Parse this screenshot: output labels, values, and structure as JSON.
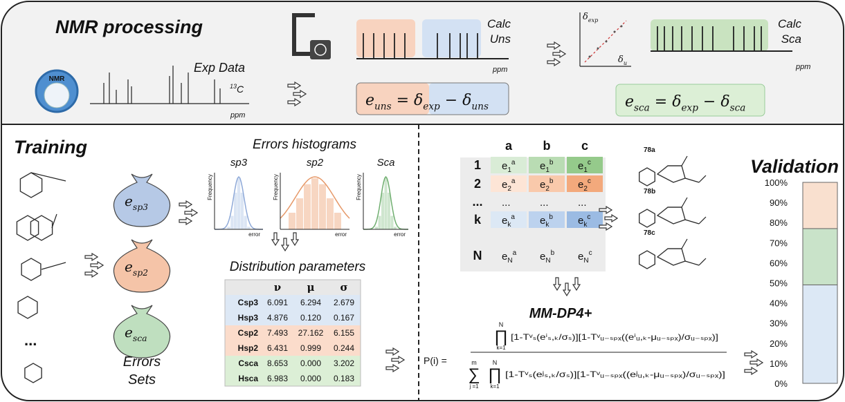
{
  "nmr_processing": {
    "title": "NMR processing",
    "icon_label": "NMR",
    "exp_data": "Exp Data",
    "nucleus_mass": "13",
    "nucleus_symbol": "C",
    "ppm_exp": "ppm",
    "calc_uns": [
      "Calc",
      "Uns"
    ],
    "ppm_uns": "ppm",
    "plot_y": [
      {
        "text": "δ",
        "sub": "exp"
      }
    ],
    "plot_x": [
      {
        "text": "δ",
        "sub": "u"
      }
    ],
    "calc_sca": [
      "Calc",
      "Sca"
    ],
    "ppm_sca": "ppm",
    "eq_uns": [
      {
        "text": "e",
        "sub": "uns"
      },
      {
        "text": " = "
      },
      {
        "text": "δ",
        "sub": "exp"
      },
      {
        "text": " − "
      },
      {
        "text": "δ",
        "sub": "uns"
      }
    ],
    "eq_sca": [
      {
        "text": "e",
        "sub": "sca"
      },
      {
        "text": " = "
      },
      {
        "text": "δ",
        "sub": "exp"
      },
      {
        "text": " − "
      },
      {
        "text": "δ",
        "sub": "sca"
      }
    ]
  },
  "training": {
    "title": "Training",
    "ellipsis": "...",
    "bags": [
      [
        {
          "text": "e",
          "sub": "sp3"
        }
      ],
      [
        {
          "text": "e",
          "sub": "sp2"
        }
      ],
      [
        {
          "text": "e",
          "sub": "sca"
        }
      ]
    ],
    "sets_label": [
      "Errors",
      "Sets"
    ],
    "histograms_title": "Errors histograms",
    "histograms": [
      {
        "title": "sp3",
        "ylabel": "Frequency",
        "xlabel": "error"
      },
      {
        "title": "sp2",
        "ylabel": "Frequency",
        "xlabel": "error"
      },
      {
        "title": "Sca",
        "ylabel": "Frequency",
        "xlabel": "error"
      }
    ],
    "params_title": "Distribution parameters",
    "params": {
      "columns": [
        "ν",
        "μ",
        "σ"
      ],
      "rows": [
        {
          "label": "Csp3",
          "values": [
            "6.091",
            "6.294",
            "2.679"
          ]
        },
        {
          "label": "Hsp3",
          "values": [
            "4.876",
            "0.120",
            "0.167"
          ]
        },
        {
          "label": "Csp2",
          "values": [
            "7.493",
            "27.162",
            "6.155"
          ]
        },
        {
          "label": "Hsp2",
          "values": [
            "6.431",
            "0.999",
            "0.244"
          ]
        },
        {
          "label": "Csca",
          "values": [
            "8.653",
            "0.000",
            "3.202"
          ]
        },
        {
          "label": "Hsca",
          "values": [
            "6.983",
            "0.000",
            "0.183"
          ]
        }
      ]
    }
  },
  "matrix": {
    "columns": [
      "a",
      "b",
      "c"
    ],
    "rows": [
      {
        "label": "1",
        "cells": [
          {
            "text": "e",
            "sub": "1",
            "sup": "a"
          },
          {
            "text": "e",
            "sub": "1",
            "sup": "b"
          },
          {
            "text": "e",
            "sub": "1",
            "sup": "c"
          }
        ]
      },
      {
        "label": "2",
        "cells": [
          {
            "text": "e",
            "sub": "2",
            "sup": "a"
          },
          {
            "text": "e",
            "sub": "2",
            "sup": "b"
          },
          {
            "text": "e",
            "sub": "2",
            "sup": "c"
          }
        ]
      },
      {
        "label": "...",
        "cells": [
          {
            "text": "..."
          },
          {
            "text": "..."
          },
          {
            "text": "..."
          }
        ]
      },
      {
        "label": "k",
        "cells": [
          {
            "text": "e",
            "sub": "k",
            "sup": "a"
          },
          {
            "text": "e",
            "sub": "k",
            "sup": "b"
          },
          {
            "text": "e",
            "sub": "k",
            "sup": "c"
          }
        ]
      },
      {
        "label": "N",
        "cells": [
          {
            "text": "e",
            "sub": "N",
            "sup": "a"
          },
          {
            "text": "e",
            "sub": "N",
            "sup": "b"
          },
          {
            "text": "e",
            "sub": "N",
            "sup": "c"
          }
        ]
      }
    ]
  },
  "candidates": [
    "78a",
    "78b",
    "78c"
  ],
  "formula": {
    "title": "MM-DP4+",
    "lhs": "P(i) =",
    "numerator": {
      "symbol": "∏",
      "upper": "N",
      "lower": "k=1",
      "body": "[1-Tᵛₛ(eⁱₛ,ₖ/σₛ)][1-Tᵛᵤ₋ₛₚₓ((eⁱᵤ,ₖ-μᵤ₋ₛₚₓ)/σᵤ₋ₛₚₓ)]"
    },
    "denominator": {
      "operators": [
        {
          "symbol": "∑",
          "upper": "m",
          "lower": "j =1"
        },
        {
          "symbol": "∏",
          "upper": "N",
          "lower": "k=1"
        }
      ],
      "body": "[1-Tᵛₛ(eʲₛ,ₖ/σₛ)][1-Tᵛᵤ₋ₛₚₓ((eʲᵤ,ₖ-μᵤ₋ₛₚₓ)/σᵤ₋ₛₚₓ)]"
    }
  },
  "validation": {
    "title": "Validation",
    "ylim": [
      0,
      100
    ],
    "yticks": [
      {
        "value": 0,
        "label": "0%"
      },
      {
        "value": 10,
        "label": "10%"
      },
      {
        "value": 20,
        "label": "20%"
      },
      {
        "value": 30,
        "label": "30%"
      },
      {
        "value": 40,
        "label": "40%"
      },
      {
        "value": 50,
        "label": "50%"
      },
      {
        "value": 60,
        "label": "60%"
      },
      {
        "value": 70,
        "label": "70%"
      },
      {
        "value": 80,
        "label": "80%"
      },
      {
        "value": 90,
        "label": "90%"
      },
      {
        "value": 100,
        "label": "100%"
      }
    ],
    "segments": [
      {
        "value": 49,
        "color": "#dce8f5"
      },
      {
        "value": 28,
        "color": "#c9e3c9"
      },
      {
        "value": 23,
        "color": "#f9e0cf"
      }
    ]
  }
}
